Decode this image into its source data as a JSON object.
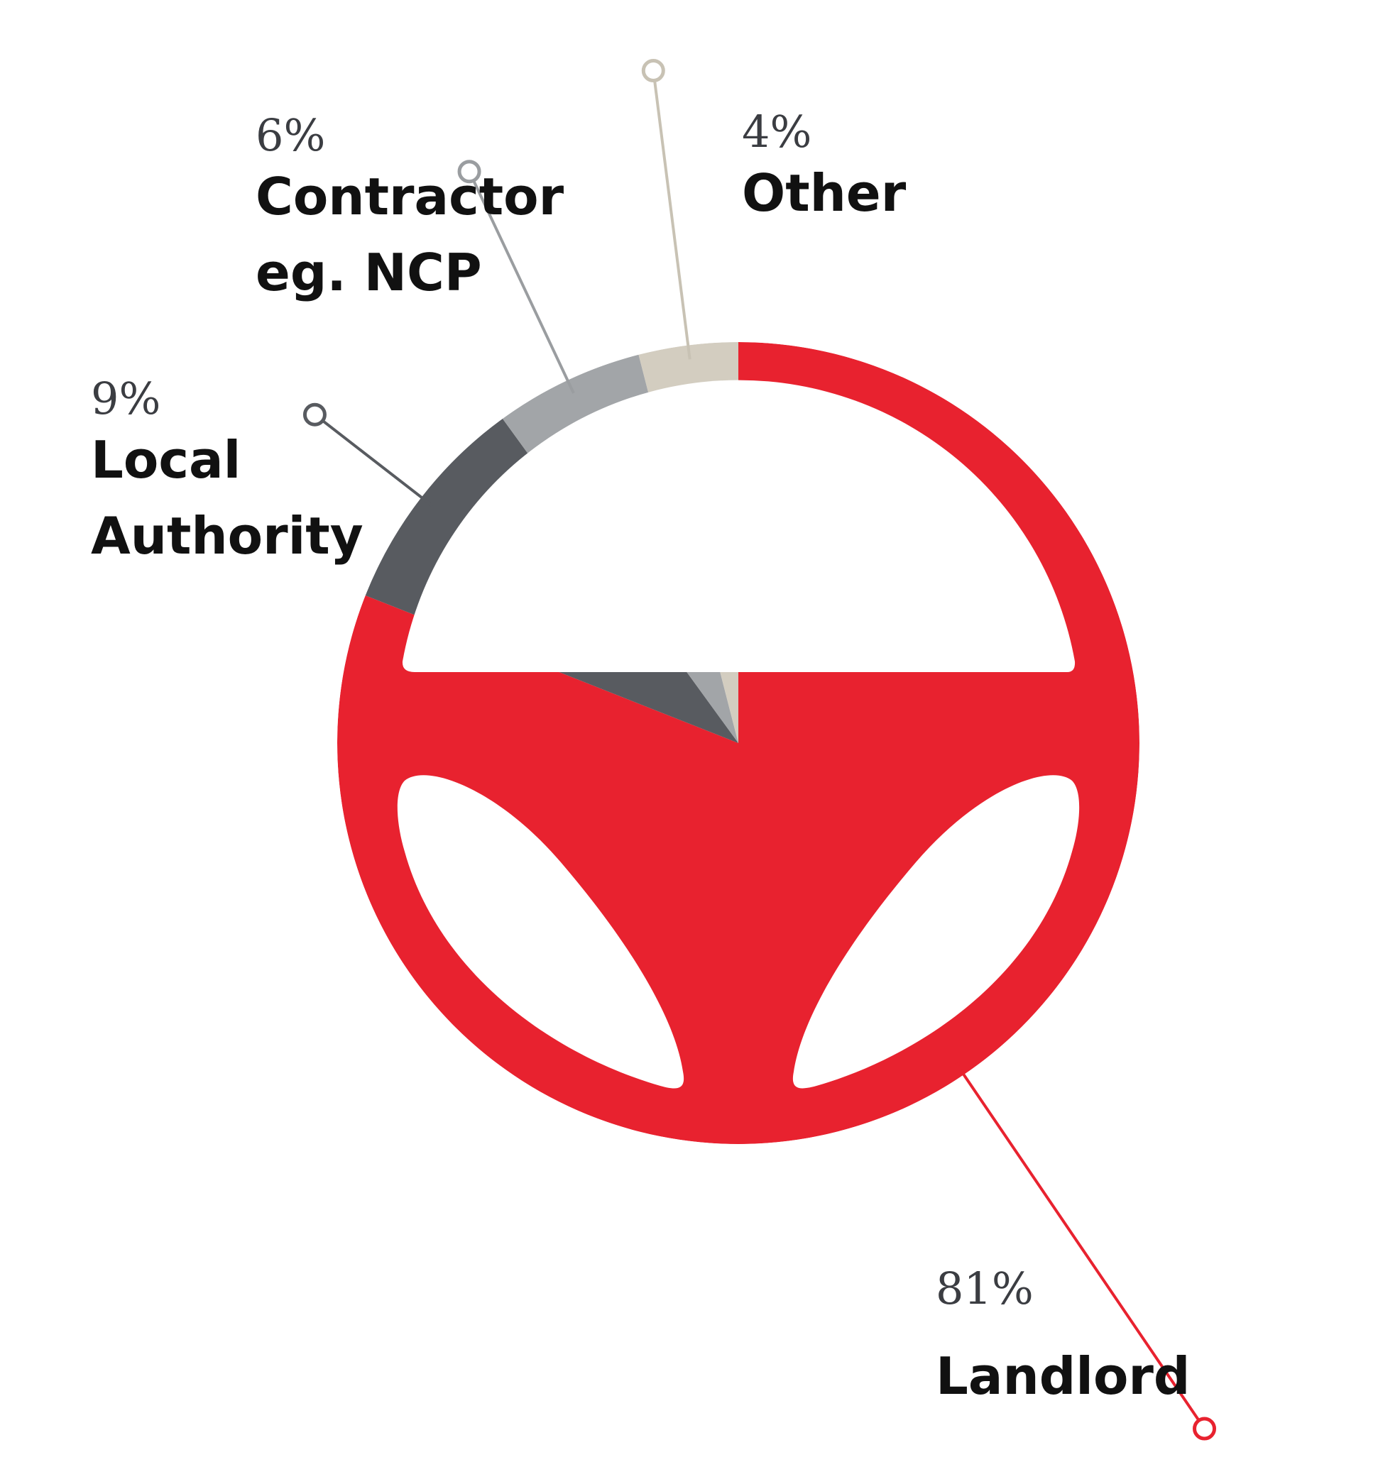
{
  "chart_data": {
    "type": "pie",
    "title": "",
    "slices": [
      {
        "label_lines": [
          "Landlord"
        ],
        "percent_label": "81%",
        "value": 81,
        "color": "#e8222f"
      },
      {
        "label_lines": [
          "Local",
          "Authority"
        ],
        "percent_label": "9%",
        "value": 9,
        "color": "#585b60"
      },
      {
        "label_lines": [
          "Contractor",
          "eg. NCP"
        ],
        "percent_label": "6%",
        "value": 6,
        "color": "#a2a5a8"
      },
      {
        "label_lines": [
          "Other"
        ],
        "percent_label": "4%",
        "value": 4,
        "color": "#d3cdc0"
      }
    ],
    "start": "12 o'clock",
    "direction": "clockwise",
    "style": "steering wheel ring with hub wedges",
    "legend": "callout labels"
  }
}
